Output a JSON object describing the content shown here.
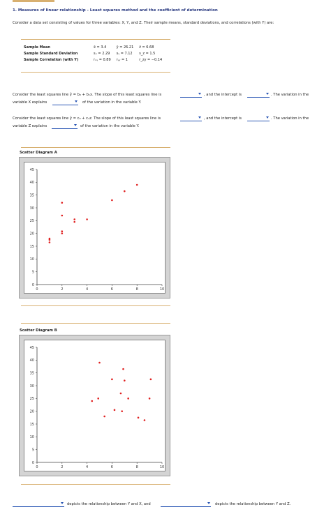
{
  "question": {
    "title": "1. Measures of linear relationship - Least squares method and the coefficient of determination",
    "intro": "Consider a data set consisting of values for three variables: X, Y, and Z. Their sample means, standard deviations, and correlations (with Y) are:"
  },
  "stats_table": {
    "rows": [
      {
        "label": "Sample Mean",
        "c1": "x̄ = 3.4",
        "c2": "ȳ = 26.21",
        "c3": "z̄ = 6.68"
      },
      {
        "label": "Sample Standard Deviation",
        "c1": "sₓ = 2.29",
        "c2": "sᵧ = 7.12",
        "c3": "s_z = 1.5"
      },
      {
        "label": "Sample Correlation (with Y)",
        "c1": "rₓᵧ = 0.89",
        "c2": "rᵧᵧ = 1",
        "c3": "r_zy = −0.14"
      }
    ]
  },
  "sentence1": {
    "part1": "Consider the least squares line ŷ = b₀ + b₁x. The slope of this least squares line is",
    "part2": ", and the intercept is",
    "part3": ". The variation in the",
    "part4": "variable X explains",
    "part5": "of the variation in the variable Y."
  },
  "sentence2": {
    "part1": "Consider the least squares line ŷ = c₀ + c₁z. The slope of this least squares line is",
    "part2": ", and the intercept is",
    "part3": ". The variation in the",
    "part4": "variable Z explains",
    "part5": "of the variation in the variable Y."
  },
  "final_sentence": {
    "part1": "depicts the relationship between Y and X, and",
    "part2": "depicts the relationship between Y and Z."
  },
  "chart_data": [
    {
      "type": "scatter",
      "title": "Scatter Diagram A",
      "xlim": [
        0,
        10
      ],
      "ylim": [
        0,
        45
      ],
      "xticks": [
        0,
        2,
        4,
        6,
        8,
        10
      ],
      "yticks": [
        0,
        5,
        10,
        15,
        20,
        25,
        30,
        35,
        40,
        45
      ],
      "point_color": "#e02020",
      "points": [
        [
          1,
          16.5
        ],
        [
          1,
          17.5
        ],
        [
          1,
          18
        ],
        [
          2,
          20
        ],
        [
          2,
          20.8
        ],
        [
          2,
          27
        ],
        [
          2,
          32
        ],
        [
          3,
          24.5
        ],
        [
          3,
          25.5
        ],
        [
          4,
          25.5
        ],
        [
          6,
          33
        ],
        [
          7,
          36.5
        ],
        [
          8,
          39
        ]
      ]
    },
    {
      "type": "scatter",
      "title": "Scatter Diagram B",
      "xlim": [
        0,
        10
      ],
      "ylim": [
        0,
        45
      ],
      "xticks": [
        0,
        2,
        4,
        6,
        8,
        10
      ],
      "yticks": [
        0,
        5,
        10,
        15,
        20,
        25,
        30,
        35,
        40,
        45
      ],
      "point_color": "#e02020",
      "points": [
        [
          4.4,
          24
        ],
        [
          4.9,
          25
        ],
        [
          5,
          39
        ],
        [
          5.4,
          18
        ],
        [
          6,
          32.5
        ],
        [
          6.2,
          20.5
        ],
        [
          6.7,
          27
        ],
        [
          6.8,
          20
        ],
        [
          6.9,
          36.5
        ],
        [
          7,
          32
        ],
        [
          7.3,
          25
        ],
        [
          8.1,
          17.5
        ],
        [
          8.6,
          16.5
        ],
        [
          9,
          25
        ],
        [
          9.1,
          32.5
        ]
      ]
    }
  ]
}
